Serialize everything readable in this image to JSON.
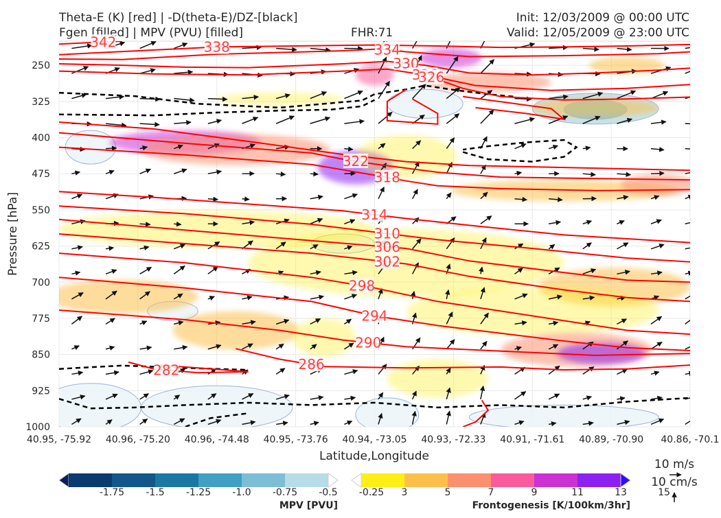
{
  "header": {
    "title_left_1": "Theta-E (K) [red] | -D(theta-E)/DZ-[black]",
    "title_left_2": "Fgen [filled] | MPV (PVU) [filled]",
    "fhr": "FHR:71",
    "init": "Init: 12/03/2009 @ 00:00 UTC",
    "valid": "Valid: 12/05/2009 @ 23:00 UTC"
  },
  "chart_data": {
    "type": "contour",
    "xlabel": "Latitude,Longitude",
    "ylabel": "Pressure [hPa]",
    "yscale": "reversed",
    "ylim": [
      1000,
      200
    ],
    "x_ticks": [
      "40.95, -75.92",
      "40.96, -75.20",
      "40.96, -74.48",
      "40.95, -73.76",
      "40.94, -73.05",
      "40.93, -72.33",
      "40.91, -71.61",
      "40.89, -70.90",
      "40.86, -70.1"
    ],
    "y_ticks": [
      250,
      325,
      400,
      475,
      550,
      625,
      700,
      775,
      850,
      925,
      1000
    ],
    "theta_e_contours": [
      {
        "label": "342",
        "pts": [
          [
            0.0,
            206
          ],
          [
            0.05,
            203
          ],
          [
            0.1,
            200
          ]
        ]
      },
      {
        "label": "338",
        "pts": [
          [
            0.0,
            228
          ],
          [
            0.25,
            212
          ],
          [
            0.5,
            208
          ],
          [
            0.6,
            210
          ],
          [
            0.7,
            213
          ],
          [
            0.8,
            212
          ],
          [
            0.9,
            210
          ],
          [
            1.0,
            207
          ]
        ]
      },
      {
        "label": "334",
        "pts": [
          [
            0.0,
            237
          ],
          [
            0.1,
            238
          ],
          [
            0.25,
            227
          ],
          [
            0.45,
            220
          ],
          [
            0.51,
            216
          ],
          [
            0.55,
            222
          ],
          [
            0.65,
            232
          ],
          [
            0.8,
            230
          ],
          [
            0.95,
            226
          ],
          [
            1.0,
            222
          ]
        ]
      },
      {
        "label": "330",
        "pts": [
          [
            0.0,
            247
          ],
          [
            0.1,
            250
          ],
          [
            0.2,
            254
          ],
          [
            0.3,
            255
          ],
          [
            0.45,
            247
          ],
          [
            0.52,
            242
          ],
          [
            0.58,
            250
          ],
          [
            0.65,
            266
          ],
          [
            0.75,
            270
          ],
          [
            0.85,
            266
          ],
          [
            0.95,
            260
          ],
          [
            1.0,
            256
          ]
        ]
      },
      {
        "label": "326",
        "pts": [
          [
            0.0,
            262
          ],
          [
            0.15,
            268
          ],
          [
            0.3,
            270
          ],
          [
            0.45,
            262
          ],
          [
            0.52,
            258
          ],
          [
            0.58,
            270
          ],
          [
            0.66,
            292
          ],
          [
            0.78,
            302
          ],
          [
            0.9,
            298
          ],
          [
            1.0,
            290
          ]
        ]
      },
      {
        "label": "326",
        "pts": [
          [
            0.59,
            275
          ],
          [
            0.64,
            298
          ],
          [
            0.7,
            315
          ],
          [
            0.8,
            322
          ],
          [
            0.9,
            320
          ],
          [
            1.0,
            316
          ]
        ]
      },
      {
        "label": "",
        "pts": [
          [
            0.55,
            300
          ],
          [
            0.52,
            325
          ],
          [
            0.52,
            365
          ],
          [
            0.6,
            372
          ],
          [
            0.6,
            350
          ],
          [
            0.56,
            320
          ]
        ]
      },
      {
        "label": "",
        "pts": [
          [
            0.64,
            315
          ],
          [
            0.78,
            340
          ],
          [
            0.8,
            362
          ],
          [
            0.74,
            350
          ],
          [
            0.66,
            338
          ]
        ]
      },
      {
        "label": "",
        "pts": [
          [
            0.0,
            368
          ],
          [
            0.15,
            382
          ],
          [
            0.3,
            408
          ],
          [
            0.45,
            435
          ],
          [
            0.55,
            450
          ],
          [
            0.65,
            458
          ],
          [
            0.8,
            462
          ],
          [
            1.0,
            468
          ]
        ]
      },
      {
        "label": "322",
        "pts": [
          [
            0.0,
            390
          ],
          [
            0.2,
            412
          ],
          [
            0.4,
            432
          ],
          [
            0.45,
            445
          ],
          [
            0.5,
            455
          ],
          [
            0.6,
            472
          ],
          [
            0.7,
            482
          ],
          [
            0.85,
            485
          ],
          [
            1.0,
            488
          ]
        ]
      },
      {
        "label": "318",
        "pts": [
          [
            0.0,
            420
          ],
          [
            0.2,
            436
          ],
          [
            0.4,
            456
          ],
          [
            0.5,
            478
          ],
          [
            0.55,
            490
          ],
          [
            0.6,
            500
          ],
          [
            0.7,
            506
          ],
          [
            0.85,
            510
          ],
          [
            1.0,
            508
          ]
        ]
      },
      {
        "label": "314",
        "pts": [
          [
            0.0,
            512
          ],
          [
            0.15,
            524
          ],
          [
            0.3,
            538
          ],
          [
            0.45,
            552
          ],
          [
            0.55,
            568
          ],
          [
            0.65,
            582
          ],
          [
            0.8,
            602
          ],
          [
            1.0,
            618
          ]
        ]
      },
      {
        "label": "310",
        "pts": [
          [
            0.0,
            542
          ],
          [
            0.2,
            558
          ],
          [
            0.4,
            580
          ],
          [
            0.5,
            596
          ],
          [
            0.6,
            612
          ],
          [
            0.75,
            630
          ],
          [
            0.9,
            650
          ],
          [
            1.0,
            658
          ]
        ]
      },
      {
        "label": "306",
        "pts": [
          [
            0.0,
            570
          ],
          [
            0.2,
            592
          ],
          [
            0.4,
            614
          ],
          [
            0.55,
            630
          ],
          [
            0.65,
            656
          ],
          [
            0.8,
            680
          ],
          [
            0.9,
            696
          ],
          [
            1.0,
            700
          ]
        ]
      },
      {
        "label": "302",
        "pts": [
          [
            0.0,
            600
          ],
          [
            0.2,
            620
          ],
          [
            0.4,
            640
          ],
          [
            0.55,
            662
          ],
          [
            0.65,
            688
          ],
          [
            0.8,
            716
          ],
          [
            0.9,
            732
          ],
          [
            1.0,
            740
          ]
        ]
      },
      {
        "label": "298",
        "pts": [
          [
            0.0,
            640
          ],
          [
            0.2,
            660
          ],
          [
            0.4,
            690
          ],
          [
            0.5,
            712
          ],
          [
            0.6,
            740
          ],
          [
            0.7,
            760
          ],
          [
            0.8,
            780
          ],
          [
            0.9,
            800
          ],
          [
            1.0,
            808
          ]
        ]
      },
      {
        "label": "294",
        "pts": [
          [
            0.0,
            690
          ],
          [
            0.2,
            712
          ],
          [
            0.4,
            740
          ],
          [
            0.5,
            770
          ],
          [
            0.6,
            790
          ],
          [
            0.7,
            806
          ],
          [
            0.8,
            822
          ],
          [
            0.9,
            836
          ],
          [
            1.0,
            842
          ]
        ]
      },
      {
        "label": "290",
        "pts": [
          [
            0.0,
            758
          ],
          [
            0.2,
            778
          ],
          [
            0.35,
            800
          ],
          [
            0.45,
            820
          ],
          [
            0.55,
            834
          ],
          [
            0.65,
            840
          ],
          [
            0.75,
            846
          ],
          [
            0.85,
            852
          ],
          [
            1.0,
            848
          ]
        ]
      },
      {
        "label": "286",
        "pts": [
          [
            0.28,
            838
          ],
          [
            0.35,
            860
          ],
          [
            0.42,
            875
          ],
          [
            0.55,
            878
          ],
          [
            0.7,
            876
          ],
          [
            0.8,
            882
          ],
          [
            0.9,
            880
          ],
          [
            1.0,
            872
          ]
        ]
      },
      {
        "label": "282",
        "pts": [
          [
            0.11,
            866
          ],
          [
            0.15,
            880
          ],
          [
            0.22,
            888
          ],
          [
            0.3,
            886
          ],
          [
            0.22,
            878
          ],
          [
            0.16,
            872
          ]
        ]
      },
      {
        "label": "",
        "pts": [
          [
            0.67,
            945
          ],
          [
            0.68,
            966
          ],
          [
            0.66,
            990
          ],
          [
            0.64,
            1000
          ]
        ]
      }
    ],
    "stability_contours": [
      {
        "pts": [
          [
            0.0,
            307
          ],
          [
            0.12,
            314
          ],
          [
            0.22,
            330
          ],
          [
            0.35,
            338
          ],
          [
            0.48,
            323
          ],
          [
            0.5,
            310
          ],
          [
            0.55,
            300
          ],
          [
            0.58,
            292
          ],
          [
            0.62,
            300
          ],
          [
            0.68,
            310
          ],
          [
            0.72,
            315
          ]
        ]
      },
      {
        "pts": [
          [
            0.0,
            352
          ],
          [
            0.15,
            354
          ],
          [
            0.25,
            348
          ],
          [
            0.35,
            344
          ],
          [
            0.43,
            342
          ],
          [
            0.48,
            335
          ],
          [
            0.5,
            322
          ]
        ]
      },
      {
        "pts": [
          [
            0.64,
            430
          ],
          [
            0.68,
            445
          ],
          [
            0.75,
            450
          ],
          [
            0.8,
            440
          ],
          [
            0.82,
            420
          ],
          [
            0.8,
            405
          ],
          [
            0.74,
            410
          ],
          [
            0.68,
            418
          ],
          [
            0.64,
            425
          ]
        ]
      },
      {
        "pts": [
          [
            0.0,
            880
          ],
          [
            0.1,
            873
          ],
          [
            0.2,
            878
          ],
          [
            0.3,
            882
          ]
        ]
      },
      {
        "pts": [
          [
            0.0,
            942
          ],
          [
            0.05,
            962
          ],
          [
            0.12,
            960
          ],
          [
            0.2,
            955
          ],
          [
            0.3,
            950
          ],
          [
            0.4,
            955
          ],
          [
            0.5,
            950
          ],
          [
            0.6,
            960
          ],
          [
            0.7,
            955
          ],
          [
            0.8,
            960
          ],
          [
            0.9,
            948
          ],
          [
            1.0,
            940
          ]
        ]
      },
      {
        "pts": [
          [
            0.2,
            1000
          ],
          [
            0.24,
            982
          ],
          [
            0.3,
            972
          ]
        ]
      }
    ],
    "fgen_blobs": [
      {
        "x": 0.62,
        "p": 235,
        "rx": 0.05,
        "rp": 20,
        "level": 11
      },
      {
        "x": 0.5,
        "p": 270,
        "rx": 0.03,
        "rp": 22,
        "level": 9
      },
      {
        "x": 0.9,
        "p": 250,
        "rx": 0.06,
        "rp": 18,
        "level": 5
      },
      {
        "x": 0.35,
        "p": 320,
        "rx": 0.1,
        "rp": 14,
        "level": 3
      },
      {
        "x": 0.68,
        "p": 285,
        "rx": 0.1,
        "rp": 20,
        "level": 7
      },
      {
        "x": 0.85,
        "p": 338,
        "rx": 0.1,
        "rp": 20,
        "level": 5
      },
      {
        "x": 0.2,
        "p": 410,
        "rx": 0.12,
        "rp": 25,
        "level": 11
      },
      {
        "x": 0.28,
        "p": 425,
        "rx": 0.15,
        "rp": 32,
        "level": 7
      },
      {
        "x": 0.47,
        "p": 462,
        "rx": 0.06,
        "rp": 35,
        "level": 13
      },
      {
        "x": 0.55,
        "p": 440,
        "rx": 0.08,
        "rp": 45,
        "level": 3
      },
      {
        "x": 0.8,
        "p": 510,
        "rx": 0.18,
        "rp": 22,
        "level": 5
      },
      {
        "x": 0.95,
        "p": 498,
        "rx": 0.06,
        "rp": 22,
        "level": 7
      },
      {
        "x": 0.25,
        "p": 590,
        "rx": 0.25,
        "rp": 38,
        "level": 3
      },
      {
        "x": 0.55,
        "p": 660,
        "rx": 0.25,
        "rp": 70,
        "level": 3
      },
      {
        "x": 0.1,
        "p": 730,
        "rx": 0.12,
        "rp": 35,
        "level": 5
      },
      {
        "x": 0.28,
        "p": 800,
        "rx": 0.1,
        "rp": 40,
        "level": 5
      },
      {
        "x": 0.42,
        "p": 815,
        "rx": 0.05,
        "rp": 40,
        "level": 3
      },
      {
        "x": 0.88,
        "p": 710,
        "rx": 0.12,
        "rp": 40,
        "level": 5
      },
      {
        "x": 0.75,
        "p": 760,
        "rx": 0.2,
        "rp": 50,
        "level": 3
      },
      {
        "x": 0.82,
        "p": 840,
        "rx": 0.12,
        "rp": 35,
        "level": 7
      },
      {
        "x": 0.86,
        "p": 848,
        "rx": 0.07,
        "rp": 22,
        "level": 13
      },
      {
        "x": 0.6,
        "p": 900,
        "rx": 0.08,
        "rp": 40,
        "level": 3
      }
    ],
    "mpv_blobs": [
      {
        "x": 0.85,
        "p": 340,
        "rx": 0.1,
        "rp": 32,
        "level": -0.5
      },
      {
        "x": 0.85,
        "p": 342,
        "rx": 0.05,
        "rp": 20,
        "level": -0.75
      },
      {
        "x": 0.58,
        "p": 330,
        "rx": 0.06,
        "rp": 30,
        "level": -0.25
      },
      {
        "x": 0.05,
        "p": 420,
        "rx": 0.04,
        "rp": 35,
        "level": -0.25
      },
      {
        "x": 0.05,
        "p": 960,
        "rx": 0.08,
        "rp": 50,
        "level": -0.25
      },
      {
        "x": 0.25,
        "p": 960,
        "rx": 0.12,
        "rp": 45,
        "level": -0.25
      },
      {
        "x": 0.52,
        "p": 975,
        "rx": 0.05,
        "rp": 35,
        "level": -0.25
      },
      {
        "x": 0.8,
        "p": 980,
        "rx": 0.15,
        "rp": 25,
        "level": -0.25
      },
      {
        "x": 0.18,
        "p": 760,
        "rx": 0.04,
        "rp": 20,
        "level": -0.25
      },
      {
        "x": 0.45,
        "p": 620,
        "rx": 0.05,
        "rp": 20,
        "level": -0.25
      }
    ],
    "mpv_colorbar": {
      "label": "MPV [PVU]",
      "ticks": [
        "-1.75",
        "-1.5",
        "-1.25",
        "-1.0",
        "-0.75",
        "-0.5",
        "-0.25"
      ],
      "colors": [
        "#071e5d",
        "#0b3a6e",
        "#115789",
        "#1a78a4",
        "#409fc3",
        "#7cbed6",
        "#b6dce7",
        "#ffffff"
      ]
    },
    "fgen_colorbar": {
      "label": "Frontogenesis [K/100km/3hr]",
      "ticks": [
        "3",
        "5",
        "7",
        "9",
        "11",
        "13",
        "15"
      ],
      "colors": [
        "#ffffff",
        "#ffef17",
        "#fcc04a",
        "#fc8f6e",
        "#fa5b9d",
        "#cc31d4",
        "#8d21f0",
        "#2b10f4"
      ]
    },
    "vector_key": {
      "horizontal": "10 m/s",
      "vertical": "10 cm/s"
    }
  }
}
